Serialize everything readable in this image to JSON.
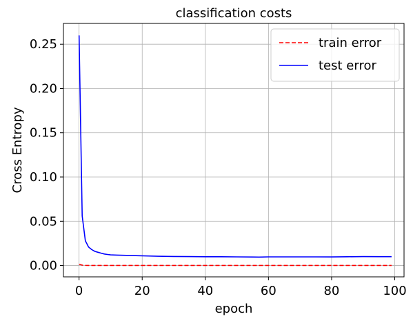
{
  "chart_data": {
    "type": "line",
    "title": "classification costs",
    "xlabel": "epoch",
    "ylabel": "Cross Entropy",
    "xlim": [
      -4.95,
      102.95
    ],
    "ylim": [
      -0.0128,
      0.2735
    ],
    "xticks": [
      0,
      20,
      40,
      60,
      80,
      100
    ],
    "xtick_labels": [
      "0",
      "20",
      "40",
      "60",
      "80",
      "100"
    ],
    "yticks": [
      0.0,
      0.05,
      0.1,
      0.15,
      0.2,
      0.25
    ],
    "ytick_labels": [
      "0.00",
      "0.05",
      "0.10",
      "0.15",
      "0.20",
      "0.25"
    ],
    "grid": true,
    "legend_position": "top-right",
    "series": [
      {
        "name": "train error",
        "color": "#ff0000",
        "linestyle": "dashed",
        "x": [
          0,
          1,
          2,
          3,
          5,
          10,
          20,
          30,
          40,
          50,
          60,
          70,
          80,
          90,
          99
        ],
        "y": [
          0.0015,
          0.0004,
          0.0002,
          0.0001,
          0.0001,
          0.0001,
          0.0001,
          0.0001,
          0.0001,
          0.0001,
          0.0001,
          0.0001,
          0.0001,
          0.0001,
          0.0001
        ]
      },
      {
        "name": "test error",
        "color": "#0000ff",
        "linestyle": "solid",
        "x": [
          0,
          1,
          2,
          3,
          4,
          5,
          6,
          7,
          8,
          9,
          10,
          12,
          15,
          20,
          25,
          30,
          35,
          40,
          45,
          50,
          55,
          57,
          60,
          65,
          70,
          75,
          80,
          85,
          90,
          95,
          99
        ],
        "y": [
          0.26,
          0.056,
          0.028,
          0.021,
          0.018,
          0.016,
          0.015,
          0.014,
          0.013,
          0.0125,
          0.012,
          0.0118,
          0.0115,
          0.011,
          0.0105,
          0.0102,
          0.0101,
          0.0099,
          0.0099,
          0.0098,
          0.0096,
          0.0095,
          0.0098,
          0.0098,
          0.0098,
          0.0098,
          0.0097,
          0.0099,
          0.0101,
          0.01,
          0.01
        ]
      }
    ]
  }
}
